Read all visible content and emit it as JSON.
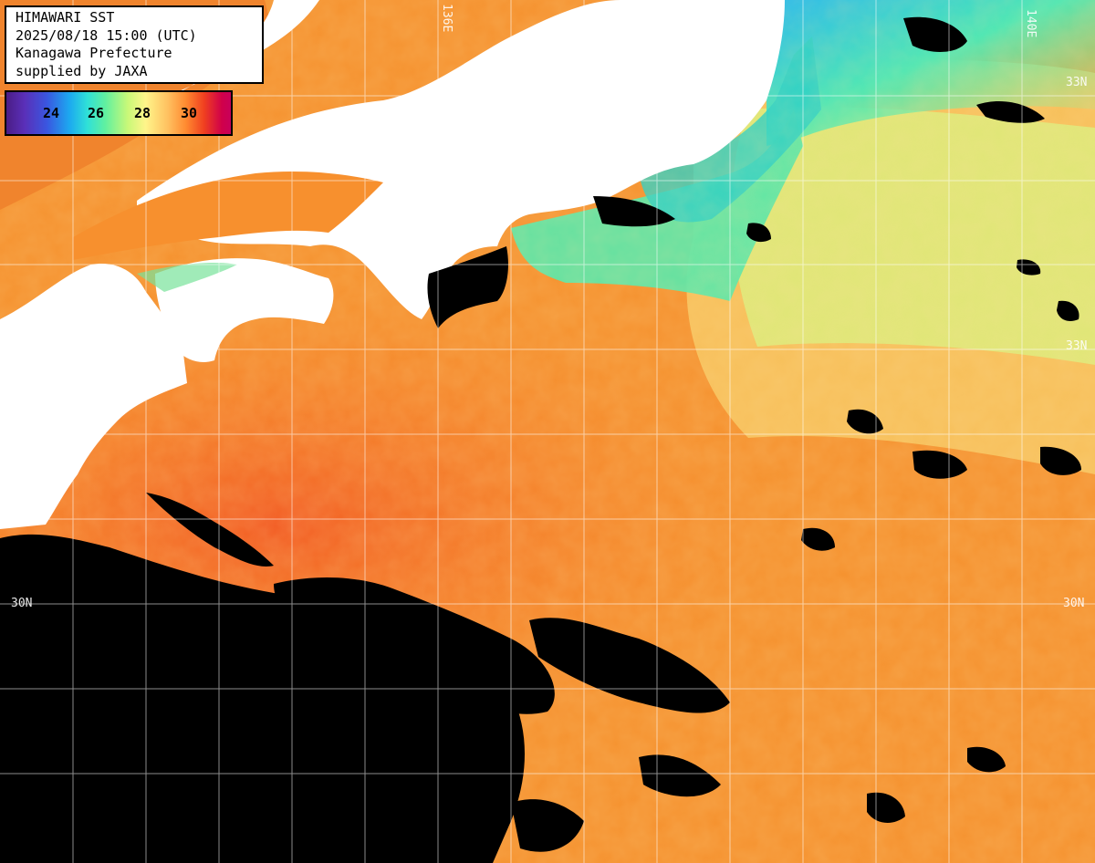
{
  "header": {
    "line1": "HIMAWARI SST",
    "line2": "2025/08/18 15:00 (UTC)",
    "line3": "Kanagawa Prefecture",
    "line4": "supplied by JAXA"
  },
  "legend": {
    "ticks": [
      "24",
      "26",
      "28",
      "30"
    ]
  },
  "grid_labels": {
    "lon_136": "136E",
    "lon_140": "140E",
    "lat_33_right": "33N",
    "lat_30_left": "30N",
    "lat_30_right": "30N",
    "lat_top_right": "33N"
  },
  "colors": {
    "land": "#ffffff",
    "no_data": "#000000",
    "grid": "#ffffff"
  }
}
